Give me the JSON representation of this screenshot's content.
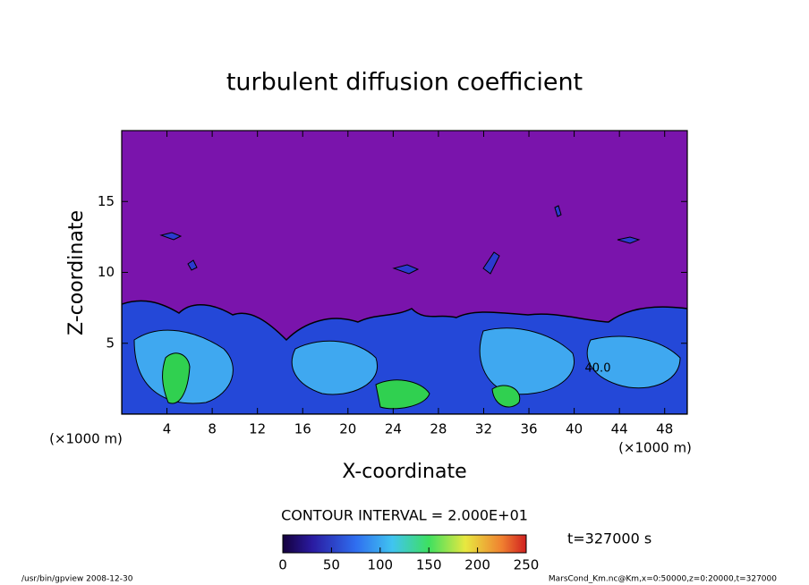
{
  "chart_data": {
    "type": "contour",
    "title": "turbulent diffusion coefficient",
    "x_label": "X-coordinate",
    "y_label": "Z-coordinate",
    "x_unit": "(×1000 m)",
    "y_unit": "(×1000 m)",
    "xlim": [
      0,
      50
    ],
    "ylim": [
      0,
      20
    ],
    "xticks": [
      4,
      8,
      12,
      16,
      20,
      24,
      28,
      32,
      36,
      40,
      44,
      48
    ],
    "yticks": [
      5,
      10,
      15
    ],
    "contour_interval": "CONTOUR INTERVAL = 2.000E+01",
    "contour_label": "40.0",
    "time_label": "t=327000 s",
    "colorbar": {
      "lim": [
        0,
        250
      ],
      "ticks": [
        0,
        50,
        100,
        150,
        200,
        250
      ]
    }
  },
  "footer": {
    "left": "/usr/bin/gpview   2008-12-30",
    "right": "MarsCond_Km.nc@Km,x=0:50000,z=0:20000,t=327000"
  }
}
